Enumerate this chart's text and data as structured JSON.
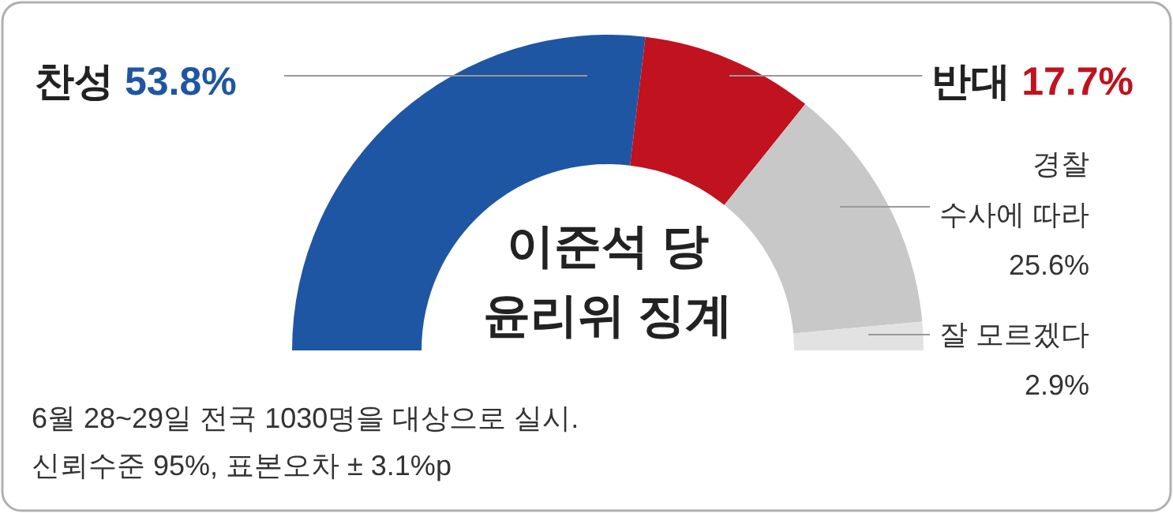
{
  "chart_data": {
    "type": "donut",
    "title": "이준석 당 윤리위 징계",
    "categories": [
      "찬성",
      "반대",
      "경찰 수사에 따라",
      "잘 모르겠다"
    ],
    "values": [
      53.8,
      17.7,
      25.6,
      2.9
    ],
    "value_labels": [
      "53.8%",
      "17.7%",
      "25.6%",
      "2.9%"
    ],
    "colors": [
      "#1f56a3",
      "#c0121f",
      "#c8c8c8",
      "#e2e2e2"
    ],
    "annotations": [
      "6월 28~29일 전국 1030명을 대상으로 실시.",
      "신뢰수준 95%, 표본오차 ± 3.1%p"
    ]
  }
}
